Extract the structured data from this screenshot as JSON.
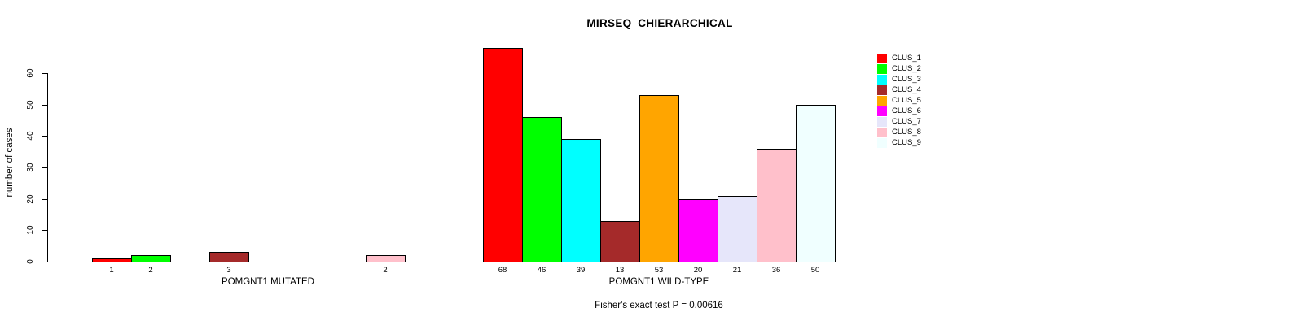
{
  "title": "MIRSEQ_CHIERARCHICAL",
  "footer": "Fisher's exact test P = 0.00616",
  "chart_data": {
    "type": "bar",
    "title": "MIRSEQ_CHIERARCHICAL",
    "ylabel": "number of cases",
    "ylim": [
      0,
      60
    ],
    "yticks": [
      0,
      10,
      20,
      30,
      40,
      50,
      60
    ],
    "grid": false,
    "legend_position": "right",
    "categories": [
      "CLUS_1",
      "CLUS_2",
      "CLUS_3",
      "CLUS_4",
      "CLUS_5",
      "CLUS_6",
      "CLUS_7",
      "CLUS_8",
      "CLUS_9"
    ],
    "colors": [
      "#FF0000",
      "#00FF00",
      "#00FFFF",
      "#A52A2A",
      "#FFA500",
      "#FF00FF",
      "#E6E6FA",
      "#FFC0CB",
      "#F0FFFF"
    ],
    "panels": [
      {
        "xlabel": "POMGNT1 MUTATED",
        "values": [
          1,
          2,
          0,
          3,
          0,
          0,
          0,
          2,
          0
        ],
        "bar_labels": [
          "1",
          "2",
          "",
          "3",
          "",
          "",
          "",
          "2",
          ""
        ]
      },
      {
        "xlabel": "POMGNT1 WILD-TYPE",
        "values": [
          68,
          46,
          39,
          13,
          53,
          20,
          21,
          36,
          50
        ],
        "bar_labels": [
          "68",
          "46",
          "39",
          "13",
          "53",
          "20",
          "21",
          "36",
          "50"
        ]
      }
    ],
    "annotation": "Fisher's exact test P = 0.00616"
  }
}
